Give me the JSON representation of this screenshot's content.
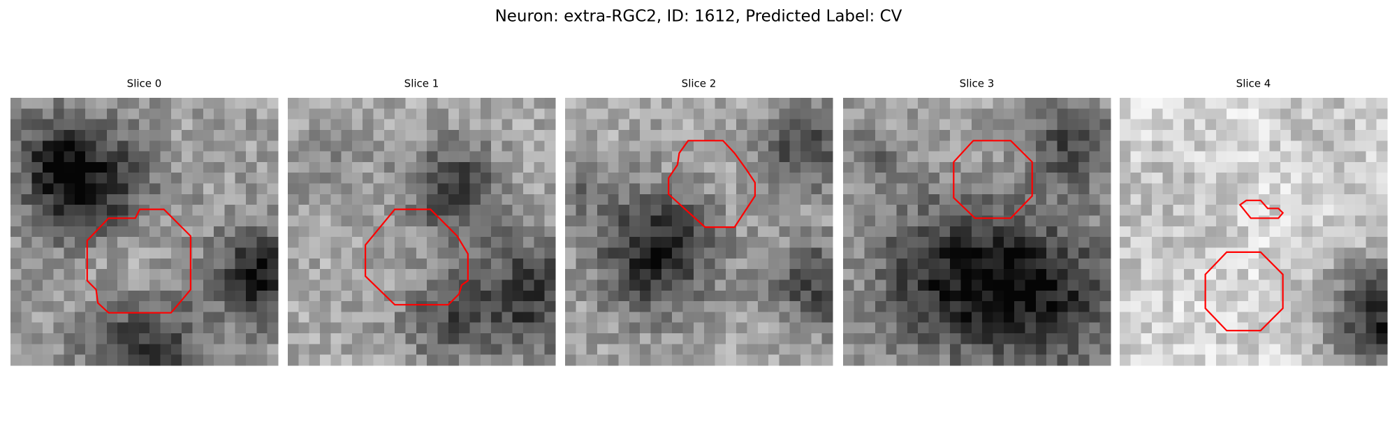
{
  "title": "Neuron: extra-RGC2, ID: 1612, Predicted Label: CV",
  "panels": [
    {
      "title": "Slice 0"
    },
    {
      "title": "Slice 1"
    },
    {
      "title": "Slice 2"
    },
    {
      "title": "Slice 3"
    },
    {
      "title": "Slice 4"
    }
  ]
}
